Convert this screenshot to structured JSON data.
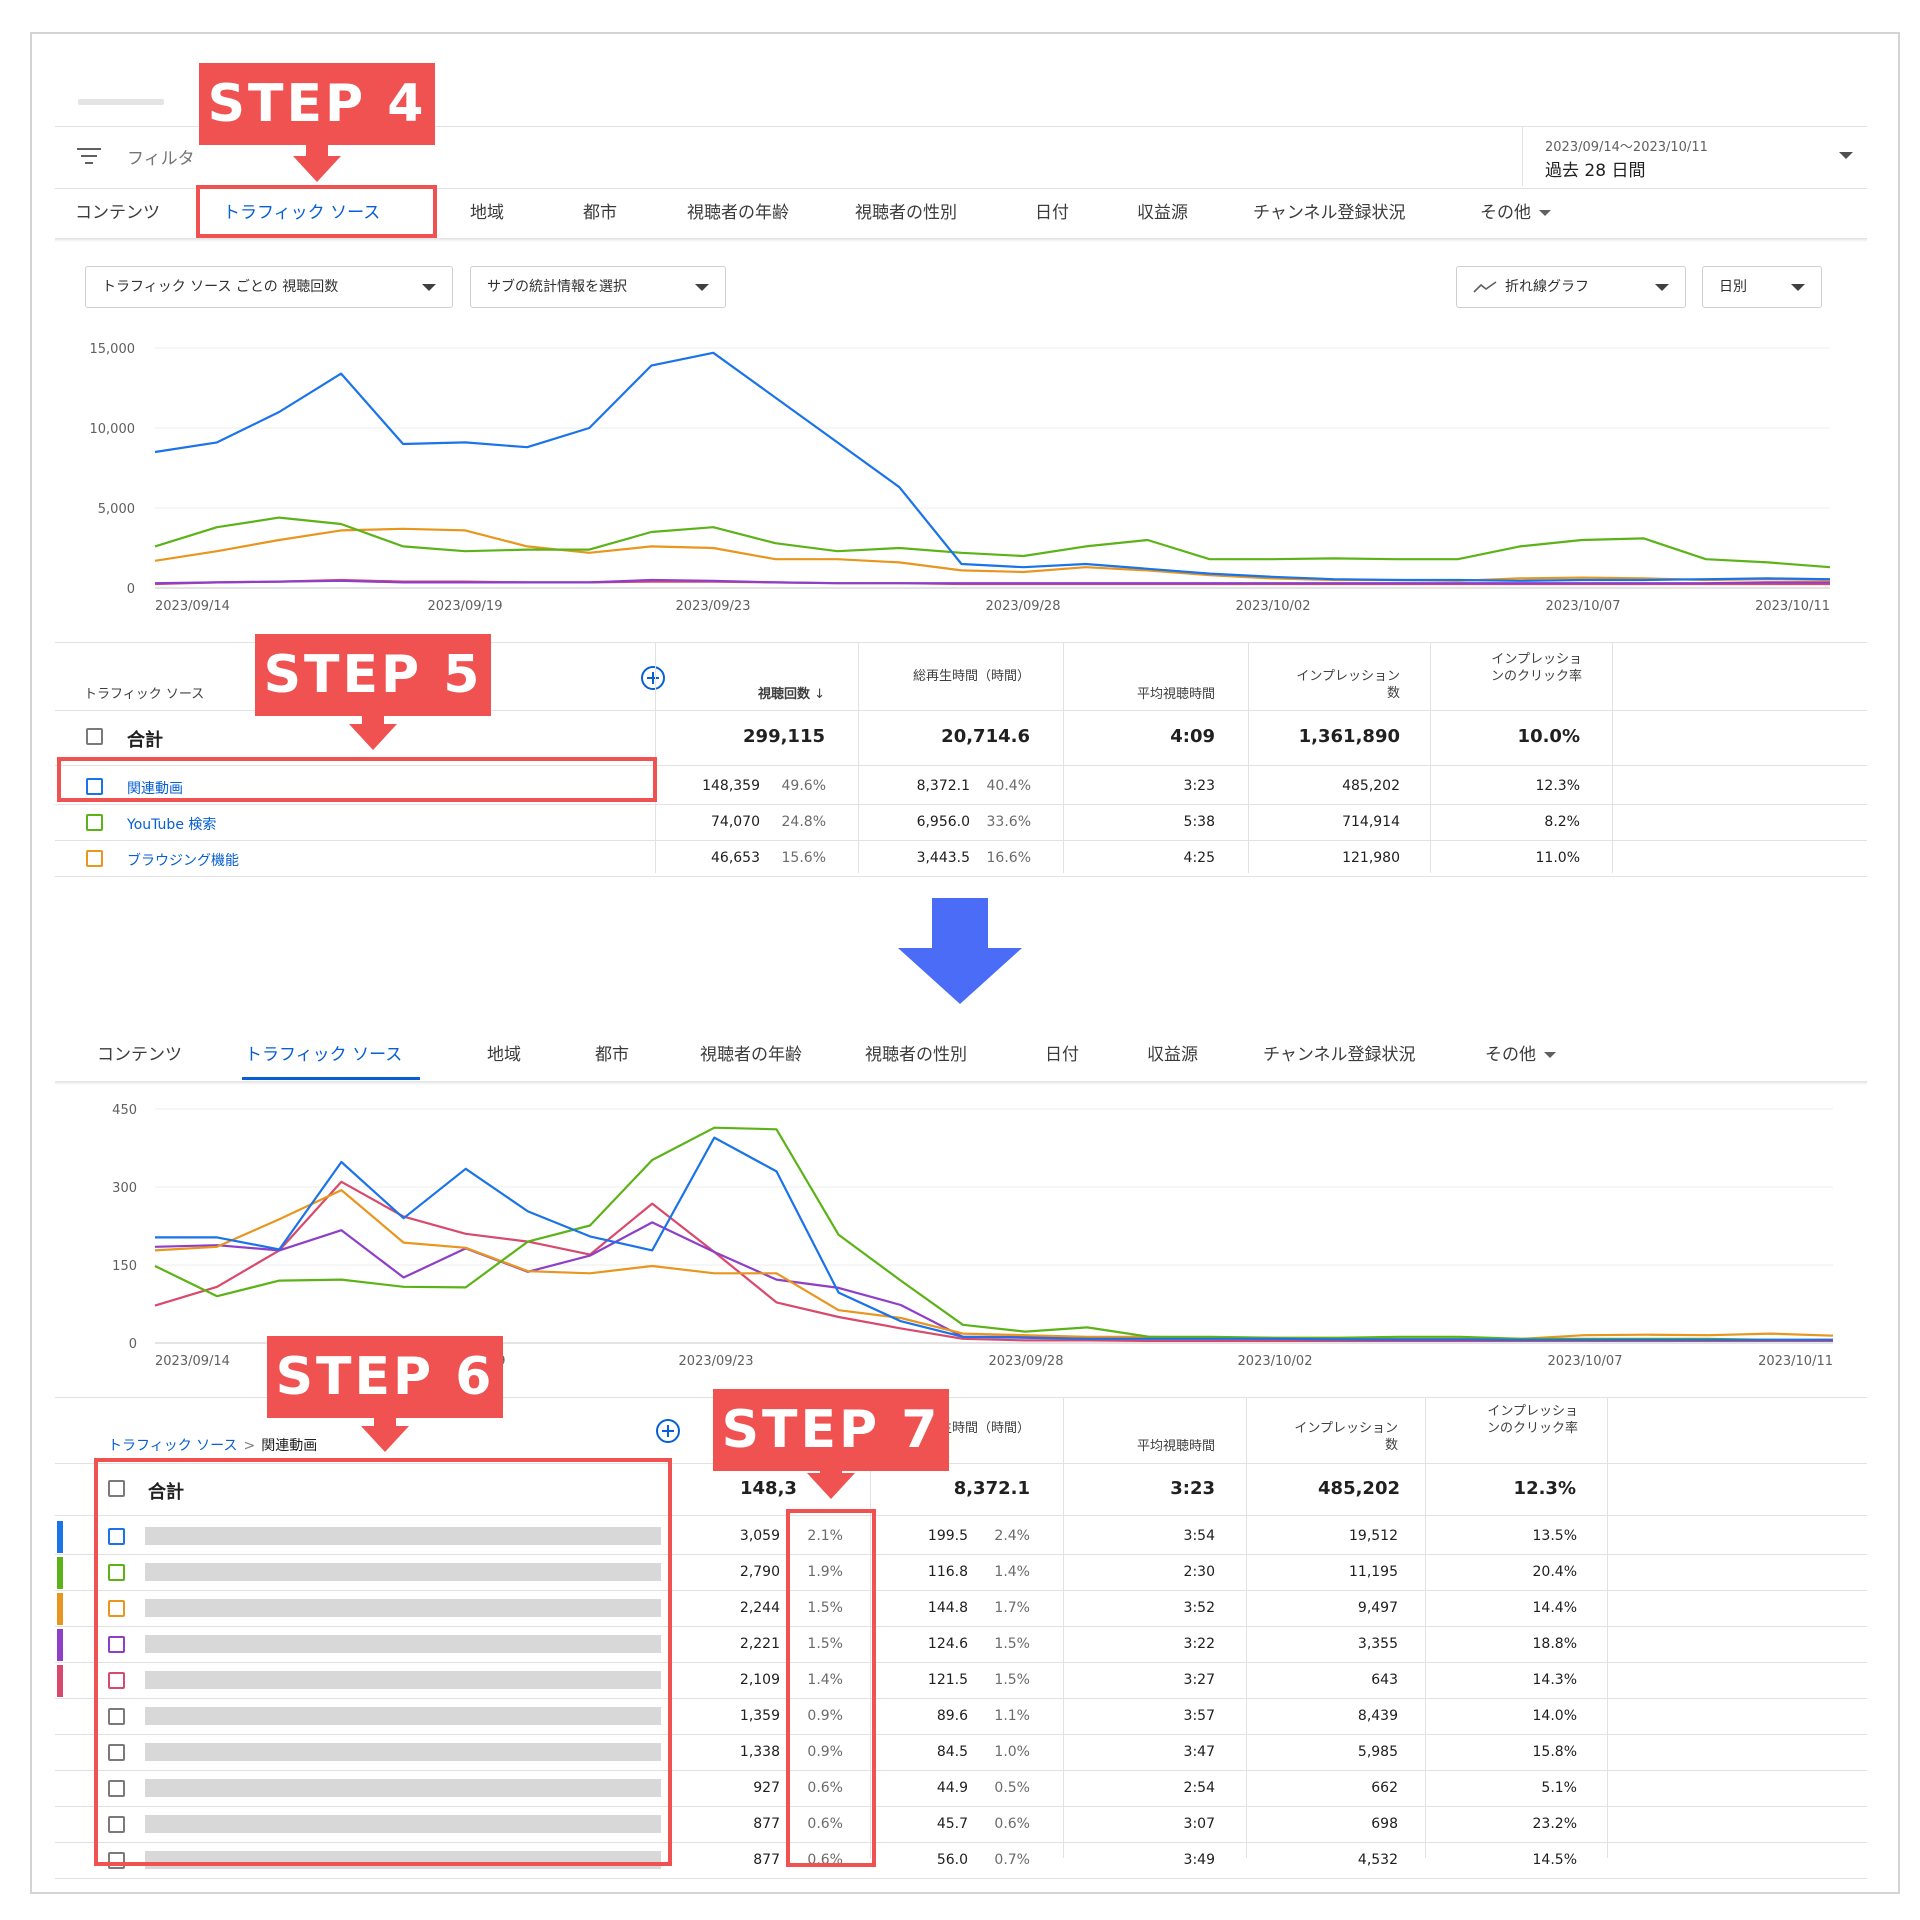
{
  "header": {
    "filter_label": "フィルタ",
    "date_range_small": "2023/09/14〜2023/10/11",
    "date_range_main": "過去 28 日間"
  },
  "tabs_top": [
    {
      "label": "コンテンツ"
    },
    {
      "label": "トラフィック ソース"
    },
    {
      "label": "地域"
    },
    {
      "label": "都市"
    },
    {
      "label": "視聴者の年齢"
    },
    {
      "label": "視聴者の性別"
    },
    {
      "label": "日付"
    },
    {
      "label": "収益源"
    },
    {
      "label": "チャンネル登録状況"
    },
    {
      "label": "その他"
    }
  ],
  "controls": {
    "metric_dropdown": "トラフィック ソース ごとの 視聴回数",
    "sub_stats_dropdown": "サブの統計情報を選択",
    "chart_type_dropdown": "折れ線グラフ",
    "interval_dropdown": "日別"
  },
  "steps": {
    "step4": "STEP 4",
    "step5": "STEP 5",
    "step6": "STEP 6",
    "step7": "STEP 7"
  },
  "colors": {
    "blue": "#1a73e8",
    "green": "#5cb318",
    "orange": "#e8961e",
    "purple": "#8e3fc8",
    "pink": "#d9496d",
    "step_red": "#f05252",
    "arrow_blue": "#4a6cf7",
    "link_blue": "#065fd4"
  },
  "chart_data": [
    {
      "type": "line",
      "x_tick_labels": [
        "2023/09/14",
        "2023/09/19",
        "2023/09/23",
        "2023/09/28",
        "2023/10/02",
        "2023/10/07",
        "2023/10/11"
      ],
      "y_tick_labels": [
        "15,000",
        "10,000",
        "5,000",
        "0"
      ],
      "ylim": [
        0,
        15000
      ],
      "x": [
        "09/14",
        "09/15",
        "09/16",
        "09/17",
        "09/18",
        "09/19",
        "09/20",
        "09/21",
        "09/22",
        "09/23",
        "09/24",
        "09/25",
        "09/26",
        "09/27",
        "09/28",
        "09/29",
        "09/30",
        "10/01",
        "10/02",
        "10/03",
        "10/04",
        "10/05",
        "10/06",
        "10/07",
        "10/08",
        "10/09",
        "10/10",
        "10/11"
      ],
      "series": [
        {
          "name": "関連動画",
          "color": "blue",
          "values": [
            8500,
            9100,
            11000,
            13400,
            9000,
            9100,
            8800,
            10000,
            13900,
            14700,
            11900,
            9100,
            6300,
            1500,
            1300,
            1500,
            1200,
            900,
            700,
            550,
            500,
            500,
            450,
            500,
            500,
            550,
            600,
            550
          ]
        },
        {
          "name": "YouTube 検索",
          "color": "green",
          "values": [
            2600,
            3800,
            4400,
            4000,
            2600,
            2300,
            2400,
            2400,
            3500,
            3800,
            2800,
            2300,
            2500,
            2200,
            2000,
            2600,
            3000,
            1800,
            1800,
            1850,
            1800,
            1800,
            2600,
            3000,
            3100,
            1800,
            1600,
            1300
          ]
        },
        {
          "name": "ブラウジング機能",
          "color": "orange",
          "values": [
            1700,
            2300,
            3000,
            3600,
            3700,
            3600,
            2600,
            2200,
            2600,
            2500,
            1800,
            1800,
            1600,
            1100,
            1000,
            1300,
            1100,
            800,
            600,
            500,
            500,
            450,
            600,
            650,
            600,
            500,
            550,
            500
          ]
        },
        {
          "color": "purple",
          "values": [
            300,
            350,
            400,
            450,
            350,
            350,
            350,
            350,
            500,
            450,
            350,
            300,
            300,
            300,
            300,
            300,
            300,
            300,
            300,
            300,
            300,
            300,
            300,
            300,
            300,
            300,
            350,
            350
          ]
        },
        {
          "color": "pink",
          "values": [
            250,
            350,
            400,
            500,
            400,
            400,
            350,
            350,
            400,
            400,
            350,
            300,
            300,
            250,
            250,
            250,
            250,
            250,
            250,
            250,
            250,
            250,
            250,
            250,
            250,
            250,
            250,
            250
          ]
        }
      ]
    },
    {
      "type": "line",
      "x_tick_labels": [
        "2023/09/14",
        "2023/09/19",
        "2023/09/23",
        "2023/09/28",
        "2023/10/02",
        "2023/10/07",
        "2023/10/11"
      ],
      "y_tick_labels": [
        "450",
        "300",
        "150",
        "0"
      ],
      "ylim": [
        0,
        450
      ],
      "x": [
        "09/14",
        "09/15",
        "09/16",
        "09/17",
        "09/18",
        "09/19",
        "09/20",
        "09/21",
        "09/22",
        "09/23",
        "09/24",
        "09/25",
        "09/26",
        "09/27",
        "09/28",
        "09/29",
        "09/30",
        "10/01",
        "10/02",
        "10/03",
        "10/04",
        "10/05",
        "10/06",
        "10/07",
        "10/08",
        "10/09",
        "10/10",
        "10/11"
      ],
      "series": [
        {
          "color": "blue",
          "values": [
            203,
            203,
            180,
            348,
            240,
            335,
            253,
            205,
            178,
            395,
            330,
            97,
            42,
            12,
            10,
            8,
            8,
            8,
            8,
            7,
            7,
            7,
            6,
            6,
            6,
            6,
            6,
            6
          ]
        },
        {
          "color": "green",
          "values": [
            148,
            90,
            120,
            122,
            108,
            107,
            195,
            226,
            352,
            414,
            411,
            208,
            120,
            35,
            22,
            30,
            12,
            12,
            10,
            10,
            12,
            12,
            8,
            8,
            8,
            8,
            6,
            6
          ]
        },
        {
          "color": "orange",
          "values": [
            178,
            185,
            238,
            294,
            193,
            183,
            138,
            134,
            148,
            134,
            134,
            63,
            48,
            18,
            15,
            12,
            12,
            10,
            10,
            10,
            8,
            8,
            8,
            15,
            16,
            15,
            18,
            14
          ]
        },
        {
          "color": "purple",
          "values": [
            185,
            188,
            178,
            217,
            126,
            182,
            137,
            168,
            232,
            175,
            122,
            106,
            73,
            12,
            12,
            10,
            9,
            9,
            8,
            7,
            6,
            6,
            6,
            6,
            6,
            6,
            6,
            6
          ]
        },
        {
          "color": "pink",
          "values": [
            72,
            108,
            178,
            310,
            243,
            210,
            195,
            170,
            268,
            175,
            78,
            50,
            28,
            8,
            5,
            5,
            4,
            4,
            4,
            4,
            4,
            4,
            4,
            4,
            4,
            4,
            4,
            4
          ]
        }
      ]
    }
  ],
  "table_top": {
    "col_source": "トラフィック ソース",
    "col_views": "視聴回数",
    "col_watch": "総再生時間（時間）",
    "col_avg": "平均視聴時間",
    "col_impr": "インプレッション数",
    "col_ctr": "インプレッションのクリック率",
    "total": {
      "label": "合計",
      "views": "299,115",
      "watch": "20,714.6",
      "avg": "4:09",
      "impr": "1,361,890",
      "ctr": "10.0%"
    },
    "rows": [
      {
        "label": "関連動画",
        "views": "148,359",
        "views_pct": "49.6%",
        "watch": "8,372.1",
        "watch_pct": "40.4%",
        "avg": "3:23",
        "impr": "485,202",
        "ctr": "12.3%",
        "color": "blue"
      },
      {
        "label": "YouTube 検索",
        "views": "74,070",
        "views_pct": "24.8%",
        "watch": "6,956.0",
        "watch_pct": "33.6%",
        "avg": "5:38",
        "impr": "714,914",
        "ctr": "8.2%",
        "color": "green"
      },
      {
        "label": "ブラウジング機能",
        "views": "46,653",
        "views_pct": "15.6%",
        "watch": "3,443.5",
        "watch_pct": "16.6%",
        "avg": "4:25",
        "impr": "121,980",
        "ctr": "11.0%",
        "color": "orange"
      }
    ]
  },
  "table_bottom": {
    "breadcrumb_root": "トラフィック ソース",
    "breadcrumb_sep": ">",
    "breadcrumb_leaf": "関連動画",
    "col_watch_partial": "再生時間（時間）",
    "col_avg": "平均視聴時間",
    "col_impr": "インプレッション数",
    "col_ctr": "インプレッションのクリック率",
    "total": {
      "label": "合計",
      "views_partial": "148,3",
      "watch": "8,372.1",
      "avg": "3:23",
      "impr": "485,202",
      "ctr": "12.3%"
    },
    "rows": [
      {
        "views": "3,059",
        "views_pct": "2.1%",
        "watch": "199.5",
        "watch_pct": "2.4%",
        "avg": "3:54",
        "impr": "19,512",
        "ctr": "13.5%",
        "color": "blue"
      },
      {
        "views": "2,790",
        "views_pct": "1.9%",
        "watch": "116.8",
        "watch_pct": "1.4%",
        "avg": "2:30",
        "impr": "11,195",
        "ctr": "20.4%",
        "color": "green"
      },
      {
        "views": "2,244",
        "views_pct": "1.5%",
        "watch": "144.8",
        "watch_pct": "1.7%",
        "avg": "3:52",
        "impr": "9,497",
        "ctr": "14.4%",
        "color": "orange"
      },
      {
        "views": "2,221",
        "views_pct": "1.5%",
        "watch": "124.6",
        "watch_pct": "1.5%",
        "avg": "3:22",
        "impr": "3,355",
        "ctr": "18.8%",
        "color": "purple"
      },
      {
        "views": "2,109",
        "views_pct": "1.4%",
        "watch": "121.5",
        "watch_pct": "1.5%",
        "avg": "3:27",
        "impr": "643",
        "ctr": "14.3%",
        "color": "pink"
      },
      {
        "views": "1,359",
        "views_pct": "0.9%",
        "watch": "89.6",
        "watch_pct": "1.1%",
        "avg": "3:57",
        "impr": "8,439",
        "ctr": "14.0%",
        "color": ""
      },
      {
        "views": "1,338",
        "views_pct": "0.9%",
        "watch": "84.5",
        "watch_pct": "1.0%",
        "avg": "3:47",
        "impr": "5,985",
        "ctr": "15.8%",
        "color": ""
      },
      {
        "views": "927",
        "views_pct": "0.6%",
        "watch": "44.9",
        "watch_pct": "0.5%",
        "avg": "2:54",
        "impr": "662",
        "ctr": "5.1%",
        "color": ""
      },
      {
        "views": "877",
        "views_pct": "0.6%",
        "watch": "45.7",
        "watch_pct": "0.6%",
        "avg": "3:07",
        "impr": "698",
        "ctr": "23.2%",
        "color": ""
      },
      {
        "views": "877",
        "views_pct": "0.6%",
        "watch": "56.0",
        "watch_pct": "0.7%",
        "avg": "3:49",
        "impr": "4,532",
        "ctr": "14.5%",
        "color": ""
      }
    ]
  }
}
